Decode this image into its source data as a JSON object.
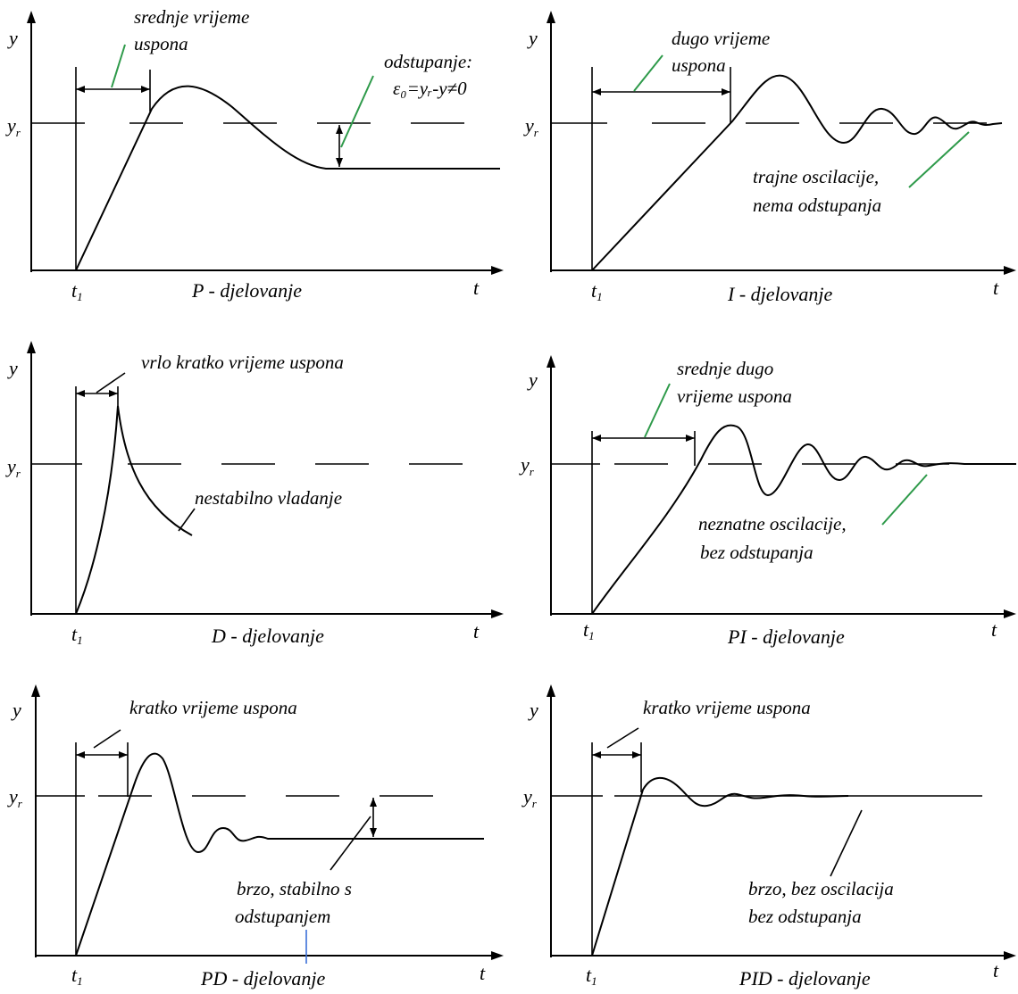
{
  "axis_labels": {
    "y": "y",
    "yr": "y",
    "yr_sub": "r",
    "t": "t",
    "t1": "t",
    "t1_sub": "1"
  },
  "colors": {
    "leader_green": "#2e9a4a",
    "leader_blue": "#3a6fd8",
    "ink": "#000000"
  },
  "panels": {
    "p": {
      "title": "P - djelovanje",
      "ann_rise_1": "srednje vrijeme",
      "ann_rise_2": "uspona",
      "ann_dev_1": "odstupanje:",
      "ann_dev_2": "ε₀=yᵣ-y≠0"
    },
    "i": {
      "title": "I - djelovanje",
      "ann_rise_1": "dugo vrijeme",
      "ann_rise_2": "uspona",
      "ann_note_1": "trajne oscilacije,",
      "ann_note_2": "nema odstupanja"
    },
    "d": {
      "title": "D - djelovanje",
      "ann_rise": "vrlo kratko vrijeme uspona",
      "ann_note": "nestabilno vladanje"
    },
    "pi": {
      "title": "PI - djelovanje",
      "ann_rise_1": "srednje dugo",
      "ann_rise_2": "vrijeme uspona",
      "ann_note_1": "neznatne  oscilacije,",
      "ann_note_2": "bez odstupanja"
    },
    "pd": {
      "title": "PD - djelovanje",
      "ann_rise": "kratko vrijeme uspona",
      "ann_note_1": "brzo, stabilno s",
      "ann_note_2": "odstupanjem"
    },
    "pid": {
      "title": "PID - djelovanje",
      "ann_rise": "kratko vrijeme uspona",
      "ann_note_1": "brzo, bez oscilacija",
      "ann_note_2": "bez odstupanja"
    }
  }
}
